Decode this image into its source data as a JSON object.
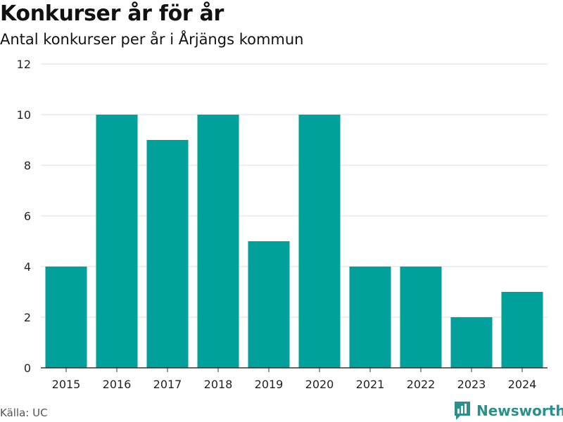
{
  "header": {
    "title": "Konkurser år för år",
    "subtitle": "Antal konkurser per år i Årjängs kommun"
  },
  "footer": {
    "source": "Källa: UC",
    "brand": "Newsworthy",
    "brand_icon": "bar-chart-logo-icon"
  },
  "colors": {
    "bar": "#00a19a",
    "grid": "#dddddd",
    "axis": "#333333",
    "brand": "#2b8f8a"
  },
  "chart_data": {
    "type": "bar",
    "title": "Konkurser år för år",
    "subtitle": "Antal konkurser per år i Årjängs kommun",
    "categories": [
      "2015",
      "2016",
      "2017",
      "2018",
      "2019",
      "2020",
      "2021",
      "2022",
      "2023",
      "2024"
    ],
    "values": [
      4,
      10,
      9,
      10,
      5,
      10,
      4,
      4,
      2,
      3
    ],
    "xlabel": "",
    "ylabel": "",
    "ylim": [
      0,
      12
    ],
    "yticks": [
      0,
      2,
      4,
      6,
      8,
      10,
      12
    ],
    "grid": true,
    "legend": "none"
  }
}
